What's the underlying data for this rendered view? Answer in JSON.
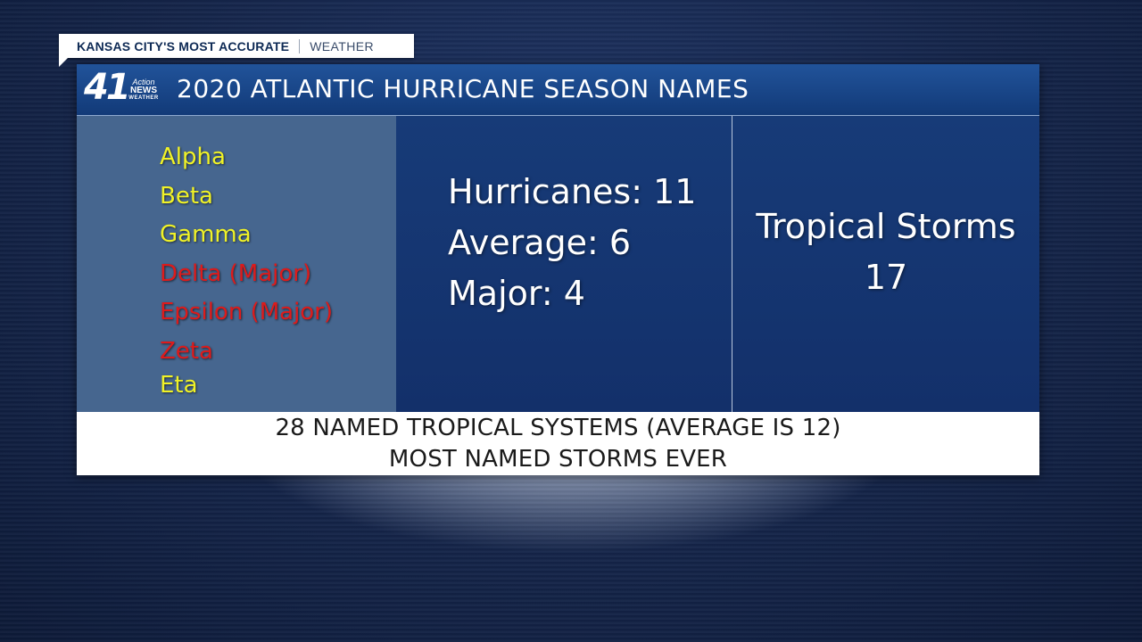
{
  "brand": {
    "tagline": "KANSAS CITY'S MOST ACCURATE",
    "section": "WEATHER"
  },
  "logo": {
    "number": "41",
    "line1": "Action",
    "line2": "NEWS",
    "line3": "WEATHER"
  },
  "header": {
    "title": "2020 ATLANTIC HURRICANE SEASON NAMES"
  },
  "names": [
    {
      "label": "Alpha",
      "color": "#f0f227"
    },
    {
      "label": "Beta",
      "color": "#f0f227"
    },
    {
      "label": "Gamma",
      "color": "#f0f227"
    },
    {
      "label": "Delta (Major)",
      "color": "#dd1b1b"
    },
    {
      "label": "Epsilon (Major)",
      "color": "#dd1b1b"
    },
    {
      "label": "Zeta",
      "color": "#dd1b1b"
    },
    {
      "label": "Eta",
      "color": "#f0f227"
    }
  ],
  "stats": {
    "hurricanes": "Hurricanes: 11",
    "average": "Average: 6",
    "major": "Major: 4"
  },
  "tropical_storms": {
    "label": "Tropical Storms",
    "count": "17"
  },
  "footer": {
    "line1": "28 NAMED TROPICAL SYSTEMS (AVERAGE IS 12)",
    "line2": "MOST NAMED STORMS EVER"
  }
}
